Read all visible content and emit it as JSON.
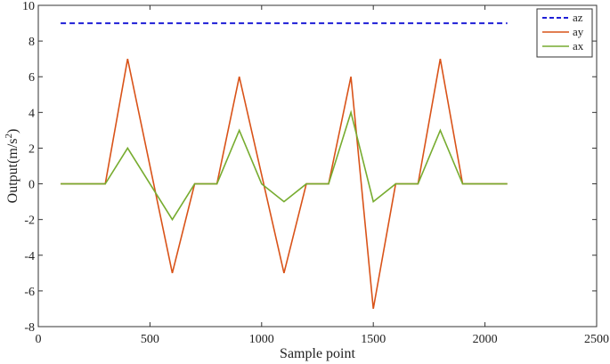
{
  "chart_data": {
    "type": "line",
    "xlabel": "Sample point",
    "ylabel_prefix": "Output(m/s",
    "ylabel_sup": "2",
    "ylabel_suffix": ")",
    "xlim": [
      0,
      2500
    ],
    "ylim": [
      -8,
      10
    ],
    "xticks": [
      0,
      500,
      1000,
      1500,
      2000,
      2500
    ],
    "yticks": [
      -8,
      -6,
      -4,
      -2,
      0,
      2,
      4,
      6,
      8,
      10
    ],
    "grid": false,
    "legend_position": "top-right",
    "series": [
      {
        "name": "az",
        "color": "#1f1fd6",
        "dash": "dashed",
        "x": [
          100,
          2100
        ],
        "y": [
          9,
          9
        ]
      },
      {
        "name": "ay",
        "color": "#d95319",
        "dash": "solid",
        "x": [
          100,
          300,
          400,
          600,
          700,
          800,
          900,
          1100,
          1200,
          1300,
          1400,
          1500,
          1600,
          1700,
          1800,
          1900,
          2100
        ],
        "y": [
          0,
          0,
          7,
          -5,
          0,
          0,
          6,
          -5,
          0,
          0,
          6,
          -7,
          0,
          0,
          7,
          0,
          0
        ]
      },
      {
        "name": "ax",
        "color": "#77ac30",
        "dash": "solid",
        "x": [
          100,
          300,
          400,
          600,
          700,
          800,
          900,
          1000,
          1100,
          1200,
          1300,
          1400,
          1500,
          1600,
          1700,
          1800,
          1900,
          2100
        ],
        "y": [
          0,
          0,
          2,
          -2,
          0,
          0,
          3,
          0,
          -1,
          0,
          0,
          4,
          -1,
          0,
          0,
          3,
          0,
          0
        ]
      }
    ]
  }
}
